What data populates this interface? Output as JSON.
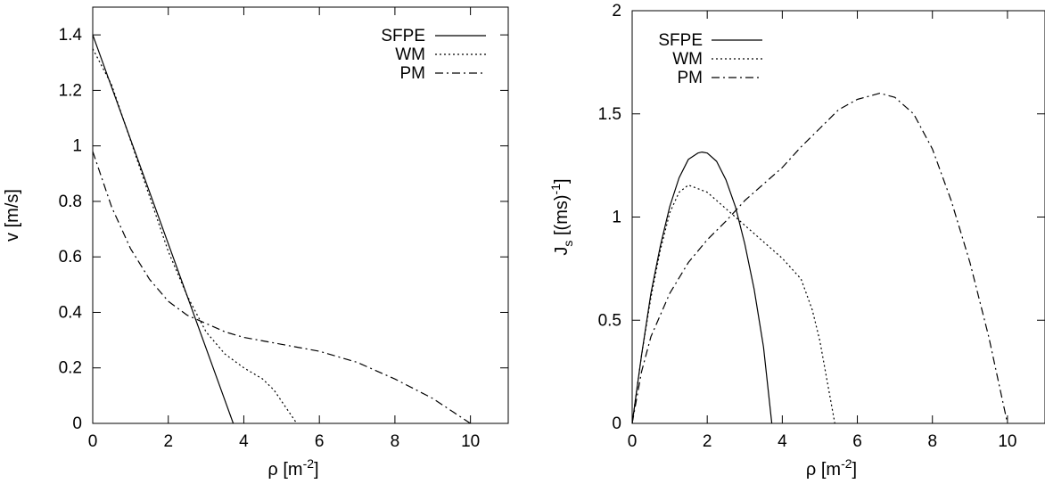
{
  "chart_data": [
    {
      "type": "line",
      "xlabel": "ρ [m",
      "xlabel_sup": "-2",
      "xlabel_close": "]",
      "ylabel": "v [m/s]",
      "xlim": [
        0,
        11
      ],
      "ylim": [
        0,
        1.5
      ],
      "xticks": [
        0,
        2,
        4,
        6,
        8,
        10
      ],
      "yticks": [
        0,
        0.2,
        0.4,
        0.6,
        0.8,
        1,
        1.2,
        1.4
      ],
      "grid": false,
      "legend_placement": "top-right",
      "series": [
        {
          "name": "SFPE",
          "style": "solid",
          "x": [
            0,
            3.72
          ],
          "y": [
            1.4,
            0
          ]
        },
        {
          "name": "WM",
          "style": "dotted",
          "x": [
            0,
            0.5,
            1.0,
            1.5,
            2.0,
            2.5,
            3.0,
            3.5,
            4.0,
            4.5,
            4.8,
            5.0,
            5.2,
            5.4
          ],
          "y": [
            1.35,
            1.22,
            1.02,
            0.82,
            0.62,
            0.46,
            0.33,
            0.25,
            0.2,
            0.16,
            0.12,
            0.08,
            0.04,
            0.0
          ]
        },
        {
          "name": "PM",
          "style": "dashdot",
          "x": [
            0,
            0.5,
            1.0,
            1.5,
            2.0,
            2.5,
            3.0,
            3.5,
            4.0,
            5.0,
            6.0,
            7.0,
            8.0,
            9.0,
            10.0
          ],
          "y": [
            0.98,
            0.78,
            0.63,
            0.52,
            0.44,
            0.39,
            0.36,
            0.33,
            0.31,
            0.285,
            0.26,
            0.22,
            0.16,
            0.09,
            0.0
          ]
        }
      ]
    },
    {
      "type": "line",
      "xlabel": "ρ [m",
      "xlabel_sup": "-2",
      "xlabel_close": "]",
      "ylabel": "J",
      "ylabel_sub": "s",
      "ylabel_mid": " [(ms)",
      "ylabel_sup": "-1",
      "ylabel_close": "]",
      "xlim": [
        0,
        11
      ],
      "ylim": [
        0,
        2
      ],
      "xticks": [
        0,
        2,
        4,
        6,
        8,
        10
      ],
      "yticks": [
        0,
        0.5,
        1,
        1.5,
        2
      ],
      "grid": false,
      "legend_placement": "top-left",
      "series": [
        {
          "name": "SFPE",
          "style": "solid",
          "x": [
            0,
            0.25,
            0.5,
            0.75,
            1.0,
            1.25,
            1.5,
            1.75,
            1.86,
            2.0,
            2.25,
            2.5,
            2.75,
            3.0,
            3.25,
            3.5,
            3.72
          ],
          "y": [
            0,
            0.33,
            0.63,
            0.86,
            1.05,
            1.19,
            1.28,
            1.31,
            1.315,
            1.31,
            1.27,
            1.18,
            1.05,
            0.87,
            0.65,
            0.37,
            0
          ]
        },
        {
          "name": "WM",
          "style": "dotted",
          "x": [
            0,
            0.25,
            0.5,
            0.75,
            1.0,
            1.25,
            1.5,
            2.0,
            2.5,
            3.0,
            3.5,
            4.0,
            4.5,
            4.8,
            5.0,
            5.2,
            5.4
          ],
          "y": [
            0,
            0.33,
            0.61,
            0.84,
            1.02,
            1.12,
            1.155,
            1.12,
            1.04,
            0.96,
            0.88,
            0.8,
            0.7,
            0.55,
            0.4,
            0.2,
            0
          ]
        },
        {
          "name": "PM",
          "style": "dashdot",
          "x": [
            0,
            0.25,
            0.5,
            1.0,
            1.5,
            2.0,
            2.5,
            3.0,
            3.5,
            4.0,
            4.5,
            5.0,
            5.5,
            6.0,
            6.6,
            7.0,
            7.5,
            8.0,
            8.5,
            9.0,
            9.5,
            10.0
          ],
          "y": [
            0,
            0.25,
            0.42,
            0.63,
            0.78,
            0.89,
            0.98,
            1.08,
            1.16,
            1.24,
            1.34,
            1.43,
            1.52,
            1.57,
            1.6,
            1.58,
            1.5,
            1.33,
            1.08,
            0.78,
            0.42,
            0
          ]
        }
      ]
    }
  ]
}
